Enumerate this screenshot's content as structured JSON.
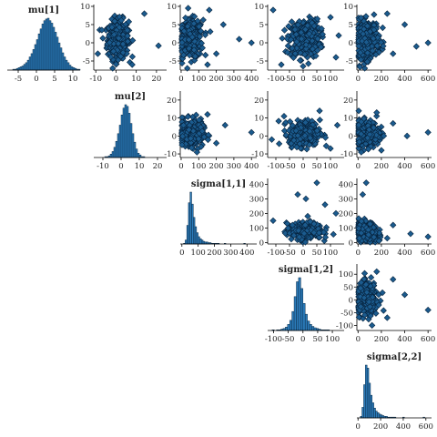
{
  "chart_data": {
    "type": "scatter",
    "layout": "pairs-matrix",
    "parameters": [
      "mu[1]",
      "mu[2]",
      "sigma[1,1]",
      "sigma[1,2]",
      "sigma[2,2]"
    ],
    "colors": {
      "bar_fill": "#2b7bba",
      "bar_edge": "#0b2a45",
      "point_fill": "#1b5b8e",
      "point_edge": "#07233d"
    },
    "histograms": [
      {
        "param": "mu[1]",
        "xlim": [
          -8,
          12
        ],
        "ticks": [
          -5,
          0,
          5,
          10
        ],
        "tick_labels": [
          "-5",
          "0",
          "5",
          "10"
        ],
        "bin_edges_start": -6.5,
        "bin_width": 0.5,
        "counts": [
          1,
          1,
          2,
          3,
          4,
          5,
          7,
          9,
          12,
          16,
          20,
          25,
          31,
          37,
          44,
          50,
          56,
          60,
          62,
          63,
          60,
          57,
          52,
          46,
          40,
          33,
          27,
          21,
          16,
          12,
          9,
          6,
          4,
          3,
          2,
          1,
          1
        ]
      },
      {
        "param": "mu[2]",
        "xlim": [
          -15,
          25
        ],
        "ticks": [
          -10,
          0,
          10,
          20
        ],
        "tick_labels": [
          "-10",
          "0",
          "10",
          "20"
        ],
        "bin_edges_start": -9,
        "bin_width": 1,
        "counts": [
          1,
          1,
          2,
          4,
          7,
          12,
          19,
          28,
          38,
          50,
          58,
          62,
          60,
          52,
          40,
          28,
          18,
          10,
          5,
          3,
          1,
          1
        ]
      },
      {
        "param": "sigma[1,1]",
        "xlim": [
          -10,
          460
        ],
        "ticks": [
          0,
          100,
          200,
          300,
          400
        ],
        "tick_labels": [
          "0",
          "100",
          "200",
          "300",
          "400"
        ],
        "bin_edges_start": 10,
        "bin_width": 10,
        "counts": [
          1,
          6,
          28,
          62,
          78,
          60,
          40,
          26,
          17,
          11,
          8,
          6,
          4,
          3,
          3,
          2,
          2,
          1,
          1,
          1,
          1,
          1,
          0,
          0,
          0,
          1,
          0,
          0,
          0,
          0,
          0,
          0,
          0,
          0,
          0,
          0,
          0,
          1
        ]
      },
      {
        "param": "sigma[1,2]",
        "xlim": [
          -120,
          140
        ],
        "ticks": [
          -100,
          -50,
          0,
          50,
          100
        ],
        "tick_labels": [
          "-100",
          "-50",
          "0",
          "50",
          "100"
        ],
        "bin_edges_start": -105,
        "bin_width": 7.5,
        "counts": [
          1,
          0,
          1,
          1,
          2,
          3,
          5,
          9,
          15,
          28,
          50,
          72,
          78,
          62,
          40,
          24,
          14,
          9,
          6,
          4,
          3,
          2,
          1,
          1,
          1,
          1
        ]
      },
      {
        "param": "sigma[2,2]",
        "xlim": [
          -10,
          650
        ],
        "ticks": [
          0,
          200,
          400,
          600
        ],
        "tick_labels": [
          "0",
          "200",
          "400",
          "600"
        ],
        "bin_edges_start": 20,
        "bin_width": 15,
        "counts": [
          2,
          14,
          44,
          70,
          66,
          46,
          30,
          20,
          13,
          9,
          7,
          5,
          4,
          3,
          2,
          2,
          1,
          1,
          1,
          1,
          1,
          0,
          0,
          0,
          0,
          1,
          0,
          0,
          0,
          0,
          0,
          0,
          0,
          0,
          0,
          0,
          0,
          1
        ]
      }
    ],
    "scatters": [
      {
        "x": "mu[1]",
        "y": "mu[2]",
        "xlim": [
          -11,
          25
        ],
        "ylim": [
          -7.5,
          10.5
        ],
        "xticks": [
          -10,
          0,
          10,
          20
        ],
        "xtick_labels": [
          "-10",
          "0",
          "10",
          "20"
        ],
        "yticks": [
          -5,
          0,
          5,
          10
        ],
        "ytick_labels": [
          "-5",
          "0",
          "5",
          "10"
        ],
        "center": [
          1,
          1
        ],
        "spread": [
          2.6,
          2.6
        ],
        "corr": 0.05,
        "count": 320,
        "extra_points": [
          [
            21,
            -0.8
          ],
          [
            14,
            8
          ],
          [
            -7,
            3.5
          ],
          [
            8,
            -6
          ],
          [
            -9,
            -3
          ]
        ]
      },
      {
        "x": "mu[1]",
        "y": "sigma[1,1]",
        "xlim": [
          -5,
          430
        ],
        "ylim": [
          -7.5,
          10.5
        ],
        "xticks": [
          0,
          100,
          200,
          300,
          400
        ],
        "xtick_labels": [
          "0",
          "100",
          "200",
          "300",
          "400"
        ],
        "yticks": [
          -5,
          0,
          5,
          10
        ],
        "ytick_labels": [
          "-5",
          "0",
          "5",
          "10"
        ],
        "center": [
          55,
          1
        ],
        "spread": [
          35,
          2.6
        ],
        "corr": 0,
        "count": 300,
        "extra_points": [
          [
            330,
            1
          ],
          [
            240,
            5
          ],
          [
            200,
            -3
          ],
          [
            160,
            9
          ],
          [
            150,
            -6
          ],
          [
            400,
            0
          ]
        ]
      },
      {
        "x": "mu[1]",
        "y": "sigma[1,2]",
        "xlim": [
          -130,
          150
        ],
        "ylim": [
          -7.5,
          10.5
        ],
        "xticks": [
          -100,
          -50,
          0,
          50,
          100
        ],
        "xtick_labels": [
          "-100",
          "-50",
          "0",
          "50",
          "100"
        ],
        "yticks": [
          -5,
          0,
          5,
          10
        ],
        "ytick_labels": [
          "-5",
          "0",
          "5",
          "10"
        ],
        "center": [
          5,
          1
        ],
        "spread": [
          28,
          2.6
        ],
        "corr": 0.05,
        "count": 320,
        "extra_points": [
          [
            -110,
            9
          ],
          [
            120,
            -4
          ],
          [
            100,
            7
          ],
          [
            -80,
            -6
          ],
          [
            130,
            2
          ]
        ]
      },
      {
        "x": "mu[1]",
        "y": "sigma[2,2]",
        "xlim": [
          -10,
          630
        ],
        "ylim": [
          -7.5,
          10.5
        ],
        "xticks": [
          0,
          200,
          400,
          600
        ],
        "xtick_labels": [
          "0",
          "200",
          "400",
          "600"
        ],
        "yticks": [
          -5,
          0,
          5,
          10
        ],
        "ytick_labels": [
          "-5",
          "0",
          "5",
          "10"
        ],
        "center": [
          80,
          1
        ],
        "spread": [
          50,
          2.6
        ],
        "corr": 0,
        "count": 300,
        "extra_points": [
          [
            600,
            0
          ],
          [
            400,
            5
          ],
          [
            300,
            -3
          ],
          [
            250,
            8
          ],
          [
            500,
            -1
          ]
        ]
      },
      {
        "x": "mu[2]",
        "y": "sigma[1,1]",
        "xlim": [
          -5,
          430
        ],
        "ylim": [
          -12,
          25
        ],
        "xticks": [
          0,
          100,
          200,
          300,
          400
        ],
        "xtick_labels": [
          "0",
          "100",
          "200",
          "300",
          "400"
        ],
        "yticks": [
          -10,
          0,
          10,
          20
        ],
        "ytick_labels": [
          "-10",
          "0",
          "10",
          "20"
        ],
        "center": [
          55,
          1.5
        ],
        "spread": [
          35,
          3.5
        ],
        "corr": 0,
        "count": 300,
        "extra_points": [
          [
            400,
            2
          ],
          [
            250,
            6
          ],
          [
            200,
            -4
          ],
          [
            150,
            12
          ],
          [
            90,
            -9
          ]
        ]
      },
      {
        "x": "mu[2]",
        "y": "sigma[1,2]",
        "xlim": [
          -130,
          150
        ],
        "ylim": [
          -12,
          25
        ],
        "xticks": [
          -100,
          -50,
          0,
          50,
          100
        ],
        "xtick_labels": [
          "-100",
          "-50",
          "0",
          "50",
          "100"
        ],
        "yticks": [
          -10,
          0,
          10,
          20
        ],
        "ytick_labels": [
          "-10",
          "0",
          "10",
          "20"
        ],
        "center": [
          5,
          1.5
        ],
        "spread": [
          28,
          3.5
        ],
        "corr": 0.05,
        "count": 320,
        "extra_points": [
          [
            -115,
            -2
          ],
          [
            125,
            6
          ],
          [
            100,
            -7
          ],
          [
            -70,
            11
          ],
          [
            60,
            14
          ]
        ]
      },
      {
        "x": "mu[2]",
        "y": "sigma[2,2]",
        "xlim": [
          -10,
          630
        ],
        "ylim": [
          -12,
          25
        ],
        "xticks": [
          0,
          200,
          400,
          600
        ],
        "xtick_labels": [
          "0",
          "200",
          "400",
          "600"
        ],
        "yticks": [
          -10,
          0,
          10,
          20
        ],
        "ytick_labels": [
          "-10",
          "0",
          "10",
          "20"
        ],
        "center": [
          80,
          1.5
        ],
        "spread": [
          50,
          3.5
        ],
        "corr": 0,
        "count": 300,
        "extra_points": [
          [
            600,
            2
          ],
          [
            420,
            0
          ],
          [
            300,
            7
          ],
          [
            200,
            -8
          ],
          [
            160,
            13
          ]
        ]
      },
      {
        "x": "sigma[1,1]",
        "y": "sigma[1,2]",
        "xlim": [
          -130,
          150
        ],
        "ylim": [
          -10,
          440
        ],
        "xticks": [
          -100,
          -50,
          0,
          50,
          100
        ],
        "xtick_labels": [
          "-100",
          "-50",
          "0",
          "50",
          "100"
        ],
        "yticks": [
          0,
          100,
          200,
          300,
          400
        ],
        "ytick_labels": [
          "0",
          "100",
          "200",
          "300",
          "400"
        ],
        "center": [
          5,
          80
        ],
        "spread": [
          32,
          28
        ],
        "corr": 0.05,
        "count": 300,
        "extra_points": [
          [
            50,
            410
          ],
          [
            -20,
            330
          ],
          [
            80,
            260
          ],
          [
            -110,
            150
          ],
          [
            120,
            200
          ],
          [
            10,
            300
          ]
        ]
      },
      {
        "x": "sigma[1,1]",
        "y": "sigma[2,2]",
        "xlim": [
          -10,
          630
        ],
        "ylim": [
          -10,
          440
        ],
        "xticks": [
          0,
          200,
          400,
          600
        ],
        "xtick_labels": [
          "0",
          "200",
          "400",
          "600"
        ],
        "yticks": [
          0,
          100,
          200,
          300,
          400
        ],
        "ytick_labels": [
          "0",
          "100",
          "200",
          "300",
          "400"
        ],
        "center": [
          75,
          75
        ],
        "spread": [
          45,
          35
        ],
        "corr": -0.2,
        "count": 300,
        "extra_points": [
          [
            70,
            410
          ],
          [
            40,
            330
          ],
          [
            300,
            120
          ],
          [
            450,
            60
          ],
          [
            600,
            40
          ],
          [
            250,
            30
          ]
        ]
      },
      {
        "x": "sigma[1,2]",
        "y": "sigma[2,2]",
        "xlim": [
          -10,
          630
        ],
        "ylim": [
          -120,
          140
        ],
        "xticks": [
          0,
          200,
          400,
          600
        ],
        "xtick_labels": [
          "0",
          "200",
          "400",
          "600"
        ],
        "yticks": [
          -100,
          -50,
          0,
          50,
          100
        ],
        "ytick_labels": [
          "-100",
          "-50",
          "0",
          "50",
          "100"
        ],
        "center": [
          75,
          5
        ],
        "spread": [
          45,
          30
        ],
        "corr": 0.05,
        "count": 300,
        "extra_points": [
          [
            600,
            -40
          ],
          [
            300,
            80
          ],
          [
            250,
            -70
          ],
          [
            160,
            110
          ],
          [
            120,
            -100
          ],
          [
            400,
            20
          ]
        ]
      }
    ]
  }
}
